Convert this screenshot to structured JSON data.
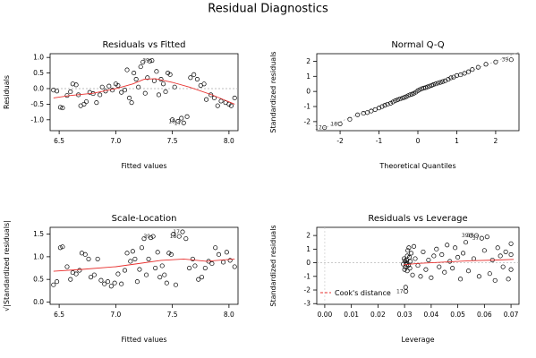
{
  "title": "Residual Diagnostics",
  "chart_data": [
    {
      "type": "scatter",
      "title": "Residuals vs Fitted",
      "xlabel": "Fitted values",
      "ylabel": "Residuals",
      "xlim": [
        6.42,
        8.08
      ],
      "ylim": [
        -1.35,
        1.12
      ],
      "xticks": [
        {
          "v": 6.5,
          "t": "6.5"
        },
        {
          "v": 7.0,
          "t": "7.0"
        },
        {
          "v": 7.5,
          "t": "7.5"
        },
        {
          "v": 8.0,
          "t": "8.0"
        }
      ],
      "yticks": [
        {
          "v": -1.0,
          "t": "-1.0"
        },
        {
          "v": -0.5,
          "t": "-0.5"
        },
        {
          "v": 0.0,
          "t": "0.0"
        },
        {
          "v": 0.5,
          "t": "0.5"
        },
        {
          "v": 1.0,
          "t": "1.0"
        }
      ],
      "reference_line": 0,
      "point_color": "#000000",
      "smooth_color": "#e8312f",
      "points": [
        [
          6.45,
          -0.05
        ],
        [
          6.48,
          -0.08
        ],
        [
          6.51,
          -0.6
        ],
        [
          6.53,
          -0.62
        ],
        [
          6.57,
          -0.22
        ],
        [
          6.6,
          -0.1
        ],
        [
          6.62,
          0.15
        ],
        [
          6.65,
          0.12
        ],
        [
          6.67,
          -0.2
        ],
        [
          6.69,
          -0.55
        ],
        [
          6.72,
          -0.5
        ],
        [
          6.74,
          -0.42
        ],
        [
          6.77,
          -0.12
        ],
        [
          6.8,
          -0.16
        ],
        [
          6.83,
          -0.45
        ],
        [
          6.86,
          -0.2
        ],
        [
          6.88,
          0.05
        ],
        [
          6.91,
          -0.08
        ],
        [
          6.94,
          0.08
        ],
        [
          6.97,
          -0.05
        ],
        [
          7.0,
          0.15
        ],
        [
          7.02,
          0.1
        ],
        [
          7.05,
          -0.12
        ],
        [
          7.08,
          -0.05
        ],
        [
          7.1,
          0.6
        ],
        [
          7.12,
          -0.3
        ],
        [
          7.14,
          -0.45
        ],
        [
          7.16,
          0.5
        ],
        [
          7.18,
          0.3
        ],
        [
          7.2,
          0.05
        ],
        [
          7.22,
          0.7
        ],
        [
          7.24,
          0.85
        ],
        [
          7.26,
          -0.15
        ],
        [
          7.28,
          0.35
        ],
        [
          7.3,
          0.88
        ],
        [
          7.32,
          0.9
        ],
        [
          7.34,
          0.25
        ],
        [
          7.36,
          0.55
        ],
        [
          7.38,
          -0.2
        ],
        [
          7.4,
          0.3
        ],
        [
          7.42,
          0.15
        ],
        [
          7.44,
          -0.1
        ],
        [
          7.46,
          0.5
        ],
        [
          7.48,
          0.45
        ],
        [
          7.5,
          -1.0
        ],
        [
          7.52,
          0.05
        ],
        [
          7.55,
          -1.05
        ],
        [
          7.58,
          -0.95
        ],
        [
          7.6,
          -1.1
        ],
        [
          7.63,
          -0.9
        ],
        [
          7.66,
          0.35
        ],
        [
          7.69,
          0.45
        ],
        [
          7.72,
          0.3
        ],
        [
          7.75,
          0.1
        ],
        [
          7.78,
          0.15
        ],
        [
          7.8,
          -0.35
        ],
        [
          7.84,
          -0.2
        ],
        [
          7.87,
          -0.3
        ],
        [
          7.9,
          -0.55
        ],
        [
          7.93,
          -0.4
        ],
        [
          7.97,
          -0.45
        ],
        [
          8.0,
          -0.5
        ],
        [
          8.02,
          -0.55
        ],
        [
          8.05,
          -0.3
        ]
      ],
      "smooth": [
        [
          6.45,
          -0.3
        ],
        [
          6.6,
          -0.22
        ],
        [
          6.8,
          -0.15
        ],
        [
          7.0,
          0.0
        ],
        [
          7.15,
          0.15
        ],
        [
          7.25,
          0.3
        ],
        [
          7.35,
          0.32
        ],
        [
          7.5,
          0.2
        ],
        [
          7.65,
          0.05
        ],
        [
          7.85,
          -0.2
        ],
        [
          8.05,
          -0.5
        ]
      ],
      "point_labels": [
        {
          "x": 7.32,
          "y": 0.9,
          "text": "39"
        },
        {
          "x": 7.55,
          "y": -1.05,
          "text": "18"
        },
        {
          "x": 7.6,
          "y": -1.1,
          "text": "17"
        }
      ]
    },
    {
      "type": "scatter",
      "title": "Normal Q-Q",
      "xlabel": "Theoretical Quantiles",
      "ylabel": "Standardized residuals",
      "xlim": [
        -2.6,
        2.6
      ],
      "ylim": [
        -2.6,
        2.5
      ],
      "xticks": [
        {
          "v": -2,
          "t": "-2"
        },
        {
          "v": -1,
          "t": "-1"
        },
        {
          "v": 0,
          "t": "0"
        },
        {
          "v": 1,
          "t": "1"
        },
        {
          "v": 2,
          "t": "2"
        }
      ],
      "yticks": [
        {
          "v": -2,
          "t": "-2"
        },
        {
          "v": -1,
          "t": "-1"
        },
        {
          "v": 0,
          "t": "0"
        },
        {
          "v": 1,
          "t": "1"
        },
        {
          "v": 2,
          "t": "2"
        }
      ],
      "reference_line": "diagonal",
      "point_color": "#000000",
      "points": [
        [
          -2.4,
          -2.4
        ],
        [
          -2.0,
          -2.15
        ],
        [
          -1.75,
          -1.85
        ],
        [
          -1.55,
          -1.55
        ],
        [
          -1.4,
          -1.45
        ],
        [
          -1.3,
          -1.4
        ],
        [
          -1.2,
          -1.3
        ],
        [
          -1.1,
          -1.2
        ],
        [
          -1.0,
          -1.1
        ],
        [
          -0.92,
          -1.0
        ],
        [
          -0.85,
          -0.92
        ],
        [
          -0.78,
          -0.85
        ],
        [
          -0.7,
          -0.78
        ],
        [
          -0.64,
          -0.7
        ],
        [
          -0.58,
          -0.62
        ],
        [
          -0.52,
          -0.55
        ],
        [
          -0.46,
          -0.5
        ],
        [
          -0.4,
          -0.45
        ],
        [
          -0.35,
          -0.4
        ],
        [
          -0.3,
          -0.35
        ],
        [
          -0.25,
          -0.28
        ],
        [
          -0.2,
          -0.22
        ],
        [
          -0.15,
          -0.18
        ],
        [
          -0.1,
          -0.12
        ],
        [
          -0.05,
          -0.05
        ],
        [
          0.0,
          0.05
        ],
        [
          0.05,
          0.12
        ],
        [
          0.1,
          0.18
        ],
        [
          0.15,
          0.22
        ],
        [
          0.2,
          0.25
        ],
        [
          0.25,
          0.3
        ],
        [
          0.3,
          0.35
        ],
        [
          0.35,
          0.4
        ],
        [
          0.4,
          0.45
        ],
        [
          0.46,
          0.5
        ],
        [
          0.52,
          0.55
        ],
        [
          0.58,
          0.6
        ],
        [
          0.64,
          0.65
        ],
        [
          0.7,
          0.7
        ],
        [
          0.78,
          0.8
        ],
        [
          0.85,
          0.9
        ],
        [
          0.92,
          0.95
        ],
        [
          1.0,
          1.05
        ],
        [
          1.1,
          1.1
        ],
        [
          1.2,
          1.2
        ],
        [
          1.3,
          1.3
        ],
        [
          1.4,
          1.45
        ],
        [
          1.55,
          1.6
        ],
        [
          1.75,
          1.8
        ],
        [
          2.0,
          1.95
        ],
        [
          2.4,
          2.1
        ]
      ],
      "point_labels": [
        {
          "x": 2.4,
          "y": 2.1,
          "text": "39"
        },
        {
          "x": -2.4,
          "y": -2.4,
          "text": "17"
        },
        {
          "x": -2.0,
          "y": -2.15,
          "text": "18"
        }
      ]
    },
    {
      "type": "scatter",
      "title": "Scale-Location",
      "xlabel": "Fitted values",
      "ylabel": "√|Standardized residuals|",
      "xlim": [
        6.42,
        8.08
      ],
      "ylim": [
        -0.05,
        1.65
      ],
      "xticks": [
        {
          "v": 6.5,
          "t": "6.5"
        },
        {
          "v": 7.0,
          "t": "7.0"
        },
        {
          "v": 7.5,
          "t": "7.5"
        },
        {
          "v": 8.0,
          "t": "8.0"
        }
      ],
      "yticks": [
        {
          "v": 0.0,
          "t": "0.0"
        },
        {
          "v": 0.5,
          "t": "0.5"
        },
        {
          "v": 1.0,
          "t": "1.0"
        },
        {
          "v": 1.5,
          "t": "1.5"
        }
      ],
      "point_color": "#000000",
      "smooth_color": "#e8312f",
      "points": [
        [
          6.45,
          0.38
        ],
        [
          6.48,
          0.45
        ],
        [
          6.51,
          1.2
        ],
        [
          6.53,
          1.22
        ],
        [
          6.57,
          0.78
        ],
        [
          6.6,
          0.5
        ],
        [
          6.62,
          0.65
        ],
        [
          6.65,
          0.62
        ],
        [
          6.68,
          0.7
        ],
        [
          6.7,
          1.08
        ],
        [
          6.73,
          1.05
        ],
        [
          6.76,
          0.95
        ],
        [
          6.78,
          0.55
        ],
        [
          6.81,
          0.6
        ],
        [
          6.84,
          0.95
        ],
        [
          6.87,
          0.48
        ],
        [
          6.9,
          0.4
        ],
        [
          6.93,
          0.45
        ],
        [
          6.96,
          0.35
        ],
        [
          6.99,
          0.42
        ],
        [
          7.02,
          0.62
        ],
        [
          7.05,
          0.4
        ],
        [
          7.08,
          0.7
        ],
        [
          7.1,
          1.08
        ],
        [
          7.13,
          0.9
        ],
        [
          7.15,
          1.12
        ],
        [
          7.17,
          0.95
        ],
        [
          7.19,
          0.45
        ],
        [
          7.21,
          0.72
        ],
        [
          7.23,
          1.2
        ],
        [
          7.25,
          1.4
        ],
        [
          7.27,
          0.6
        ],
        [
          7.29,
          0.95
        ],
        [
          7.31,
          1.42
        ],
        [
          7.33,
          1.45
        ],
        [
          7.35,
          0.75
        ],
        [
          7.37,
          1.1
        ],
        [
          7.39,
          0.55
        ],
        [
          7.41,
          0.8
        ],
        [
          7.43,
          0.6
        ],
        [
          7.45,
          0.42
        ],
        [
          7.47,
          1.08
        ],
        [
          7.49,
          1.05
        ],
        [
          7.51,
          1.5
        ],
        [
          7.53,
          0.38
        ],
        [
          7.56,
          1.45
        ],
        [
          7.59,
          1.55
        ],
        [
          7.62,
          1.4
        ],
        [
          7.65,
          0.75
        ],
        [
          7.68,
          0.95
        ],
        [
          7.7,
          0.8
        ],
        [
          7.73,
          0.5
        ],
        [
          7.76,
          0.55
        ],
        [
          7.79,
          0.75
        ],
        [
          7.82,
          0.9
        ],
        [
          7.85,
          0.85
        ],
        [
          7.88,
          1.2
        ],
        [
          7.91,
          1.05
        ],
        [
          7.95,
          0.88
        ],
        [
          7.98,
          1.1
        ],
        [
          8.01,
          0.92
        ],
        [
          8.05,
          0.78
        ]
      ],
      "smooth": [
        [
          6.45,
          0.68
        ],
        [
          6.7,
          0.72
        ],
        [
          7.0,
          0.78
        ],
        [
          7.2,
          0.85
        ],
        [
          7.4,
          0.92
        ],
        [
          7.6,
          0.95
        ],
        [
          7.8,
          0.9
        ],
        [
          8.05,
          0.95
        ]
      ],
      "point_labels": [
        {
          "x": 7.33,
          "y": 1.45,
          "text": "39"
        },
        {
          "x": 7.56,
          "y": 1.45,
          "text": "18"
        },
        {
          "x": 7.59,
          "y": 1.55,
          "text": "17"
        }
      ]
    },
    {
      "type": "scatter",
      "title": "Residuals vs Leverage",
      "xlabel": "Leverage",
      "ylabel": "Standardized residuals",
      "xlim": [
        -0.003,
        0.073
      ],
      "ylim": [
        -3.05,
        2.6
      ],
      "xticks": [
        {
          "v": 0.0,
          "t": "0.00"
        },
        {
          "v": 0.01,
          "t": "0.01"
        },
        {
          "v": 0.02,
          "t": "0.02"
        },
        {
          "v": 0.03,
          "t": "0.03"
        },
        {
          "v": 0.04,
          "t": "0.04"
        },
        {
          "v": 0.05,
          "t": "0.05"
        },
        {
          "v": 0.06,
          "t": "0.06"
        },
        {
          "v": 0.07,
          "t": "0.07"
        }
      ],
      "yticks": [
        {
          "v": -3,
          "t": "-3"
        },
        {
          "v": -2,
          "t": "-2"
        },
        {
          "v": -1,
          "t": "-1"
        },
        {
          "v": 0,
          "t": "0"
        },
        {
          "v": 1,
          "t": "1"
        },
        {
          "v": 2,
          "t": "2"
        }
      ],
      "reference_line": 0,
      "point_color": "#000000",
      "smooth_color": "#e8312f",
      "legend": "Cook's distance",
      "legend_position": "bottom-left",
      "points": [
        [
          0.0295,
          -0.1
        ],
        [
          0.0298,
          0.3
        ],
        [
          0.03,
          -0.5
        ],
        [
          0.0302,
          0.15
        ],
        [
          0.0303,
          -0.3
        ],
        [
          0.0304,
          -1.8
        ],
        [
          0.0305,
          -2.1
        ],
        [
          0.0306,
          0.0
        ],
        [
          0.0307,
          0.2
        ],
        [
          0.0308,
          -0.15
        ],
        [
          0.031,
          0.5
        ],
        [
          0.031,
          -0.6
        ],
        [
          0.0312,
          0.9
        ],
        [
          0.0314,
          -0.2
        ],
        [
          0.0316,
          1.1
        ],
        [
          0.0318,
          0.4
        ],
        [
          0.032,
          -0.4
        ],
        [
          0.0322,
          0.1
        ],
        [
          0.0325,
          0.7
        ],
        [
          0.033,
          -0.9
        ],
        [
          0.0335,
          1.2
        ],
        [
          0.034,
          0.3
        ],
        [
          0.035,
          -0.2
        ],
        [
          0.036,
          -1.0
        ],
        [
          0.037,
          0.8
        ],
        [
          0.038,
          -0.5
        ],
        [
          0.039,
          0.2
        ],
        [
          0.04,
          -1.1
        ],
        [
          0.041,
          0.5
        ],
        [
          0.042,
          1.0
        ],
        [
          0.043,
          -0.3
        ],
        [
          0.044,
          0.6
        ],
        [
          0.045,
          -0.7
        ],
        [
          0.046,
          1.3
        ],
        [
          0.047,
          0.1
        ],
        [
          0.048,
          -0.4
        ],
        [
          0.049,
          1.1
        ],
        [
          0.05,
          0.4
        ],
        [
          0.051,
          -1.2
        ],
        [
          0.052,
          0.7
        ],
        [
          0.053,
          1.5
        ],
        [
          0.054,
          -0.6
        ],
        [
          0.055,
          2.0
        ],
        [
          0.056,
          0.3
        ],
        [
          0.057,
          2.0
        ],
        [
          0.058,
          -1.0
        ],
        [
          0.059,
          1.8
        ],
        [
          0.06,
          0.9
        ],
        [
          0.061,
          1.9
        ],
        [
          0.062,
          -0.8
        ],
        [
          0.063,
          0.2
        ],
        [
          0.064,
          -1.3
        ],
        [
          0.065,
          1.1
        ],
        [
          0.066,
          0.5
        ],
        [
          0.067,
          -0.3
        ],
        [
          0.068,
          0.8
        ],
        [
          0.069,
          -1.2
        ],
        [
          0.07,
          1.4
        ],
        [
          0.07,
          0.6
        ],
        [
          0.07,
          -0.5
        ]
      ],
      "smooth": [
        [
          0.0295,
          -0.15
        ],
        [
          0.035,
          -0.05
        ],
        [
          0.045,
          0.05
        ],
        [
          0.055,
          0.15
        ],
        [
          0.065,
          0.2
        ],
        [
          0.071,
          0.25
        ]
      ],
      "point_labels": [
        {
          "x": 0.055,
          "y": 2.0,
          "text": "39"
        },
        {
          "x": 0.057,
          "y": 2.0,
          "text": "36"
        },
        {
          "x": 0.059,
          "y": 1.8,
          "text": "37"
        },
        {
          "x": 0.0305,
          "y": -2.1,
          "text": "17"
        }
      ]
    }
  ]
}
